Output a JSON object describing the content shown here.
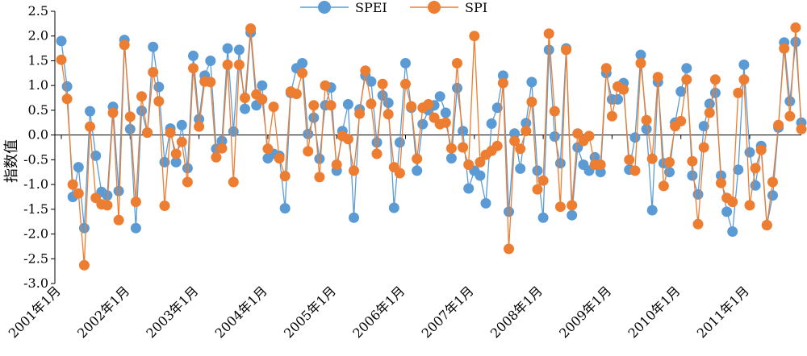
{
  "chart_data": {
    "type": "line",
    "title": "",
    "xlabel": "",
    "ylabel": "指数值",
    "ylim": [
      -3.0,
      2.5
    ],
    "yticks": [
      "2.5",
      "2.0",
      "1.5",
      "1.0",
      "0.5",
      "0.0",
      "-0.5",
      "-1.0",
      "-1.5",
      "-2.0",
      "-2.5",
      "-3.0"
    ],
    "ytick_values": [
      2.5,
      2.0,
      1.5,
      1.0,
      0.5,
      0.0,
      -0.5,
      -1.0,
      -1.5,
      -2.0,
      -2.5,
      -3.0
    ],
    "xtick_labels": [
      "2001年1月",
      "2002年1月",
      "2003年1月",
      "2004年1月",
      "2005年1月",
      "2006年1月",
      "2007年1月",
      "2008年1月",
      "2009年1月",
      "2010年1月",
      "2011年1月"
    ],
    "legend_position": "top-center",
    "grid": false,
    "series": [
      {
        "name": "SPEI",
        "color": "#5b9bd5",
        "values": [
          1.9,
          0.98,
          -1.25,
          -0.65,
          -1.88,
          0.48,
          -0.42,
          -1.15,
          -1.22,
          0.57,
          -1.13,
          1.92,
          0.12,
          -1.88,
          0.49,
          0.05,
          1.78,
          0.97,
          -0.55,
          0.13,
          -0.55,
          0.2,
          -0.67,
          1.6,
          0.32,
          1.2,
          1.5,
          -0.28,
          -0.12,
          1.75,
          0.07,
          1.72,
          0.53,
          2.07,
          0.6,
          1.0,
          -0.47,
          -0.38,
          -0.42,
          -1.48,
          0.85,
          1.35,
          1.45,
          0.02,
          0.35,
          -0.48,
          0.6,
          0.96,
          -0.72,
          0.08,
          0.62,
          -1.67,
          0.52,
          1.2,
          1.08,
          -0.15,
          0.8,
          0.65,
          -1.47,
          -0.15,
          1.45,
          0.55,
          -0.72,
          0.22,
          0.5,
          0.6,
          0.78,
          0.45,
          -0.47,
          0.95,
          0.08,
          -1.08,
          -0.72,
          -0.82,
          -1.38,
          0.23,
          0.55,
          1.2,
          -1.55,
          0.03,
          -0.68,
          0.24,
          1.07,
          -0.72,
          -1.67,
          1.72,
          -0.03,
          -0.57,
          1.75,
          -1.62,
          -0.25,
          -0.6,
          -0.72,
          -0.45,
          -0.75,
          1.25,
          0.72,
          0.72,
          1.05,
          -0.7,
          -0.05,
          1.62,
          0.12,
          -1.52,
          1.07,
          -0.57,
          -0.75,
          0.25,
          0.88,
          1.35,
          -0.82,
          -1.2,
          0.18,
          0.63,
          0.85,
          -0.82,
          -1.55,
          -1.95,
          -0.7,
          1.42,
          -0.35,
          -1.02,
          -0.22,
          -1.82,
          -1.22,
          0.15,
          1.87,
          0.68,
          1.88,
          0.25
        ]
      },
      {
        "name": "SPI",
        "color": "#ed7d31",
        "values": [
          1.52,
          0.73,
          -1.0,
          -1.18,
          -2.63,
          0.17,
          -1.27,
          -1.4,
          -1.42,
          0.45,
          -1.72,
          1.82,
          0.37,
          -1.35,
          0.78,
          0.05,
          1.27,
          0.68,
          -1.43,
          0.05,
          -0.38,
          -0.14,
          -0.95,
          1.35,
          0.17,
          1.08,
          1.07,
          -0.45,
          -0.27,
          1.42,
          -0.95,
          1.42,
          0.75,
          2.15,
          0.82,
          0.72,
          -0.28,
          0.57,
          -0.47,
          -0.83,
          0.88,
          0.83,
          1.25,
          -0.33,
          0.6,
          -0.85,
          1.0,
          0.6,
          -0.6,
          -0.02,
          -0.08,
          -0.72,
          0.43,
          1.3,
          0.63,
          -0.38,
          1.03,
          0.42,
          -0.65,
          -0.77,
          1.03,
          0.58,
          -0.48,
          0.55,
          0.62,
          0.35,
          0.22,
          0.25,
          -0.27,
          1.45,
          -0.25,
          -0.6,
          2.0,
          -0.55,
          -0.4,
          -0.32,
          -0.22,
          1.05,
          -2.3,
          -0.12,
          -0.28,
          0.08,
          0.67,
          -1.1,
          -0.92,
          2.05,
          0.48,
          -1.45,
          1.72,
          -1.42,
          0.03,
          -0.12,
          -0.02,
          -0.6,
          -0.6,
          1.35,
          0.38,
          0.98,
          0.92,
          -0.5,
          -0.72,
          1.45,
          0.3,
          -0.48,
          1.17,
          -1.03,
          -0.55,
          0.18,
          0.28,
          1.12,
          -0.53,
          -1.8,
          -0.25,
          0.45,
          1.12,
          -0.97,
          -1.27,
          -1.35,
          0.85,
          1.12,
          -1.42,
          -0.67,
          -0.3,
          -1.82,
          -0.95,
          0.2,
          1.75,
          0.38,
          2.17,
          0.12
        ]
      }
    ]
  }
}
